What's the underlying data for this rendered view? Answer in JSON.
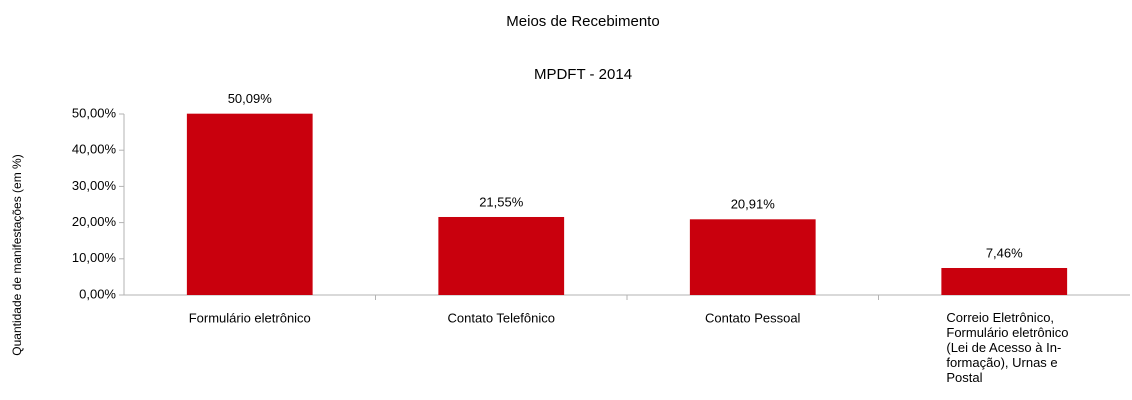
{
  "chart_data": {
    "type": "bar",
    "title": "Meios de Recebimento",
    "subtitle": "MPDFT - 2014",
    "y_label": "Quantidade de manifestações (em %)",
    "categories": [
      "Formulário eletrônico",
      "Contato Telefônico",
      "Contato Pessoal",
      "Correio Eletrônico,\nFormulário eletrônico\n(Lei de Acesso à In-\nformação), Urnas e\nPostal"
    ],
    "values": [
      50.09,
      21.55,
      20.91,
      7.46
    ],
    "value_labels": [
      "50,09%",
      "21,55%",
      "20,91%",
      "7,46%"
    ],
    "color": "#c9000d",
    "ylim": [
      0,
      50
    ],
    "yticks": [
      {
        "value": 0,
        "label": "0,00%"
      },
      {
        "value": 10,
        "label": "10,00%"
      },
      {
        "value": 20,
        "label": "20,00%"
      },
      {
        "value": 30,
        "label": "30,00%"
      },
      {
        "value": 40,
        "label": "40,00%"
      },
      {
        "value": 50,
        "label": "50,00%"
      }
    ],
    "grid": false
  }
}
